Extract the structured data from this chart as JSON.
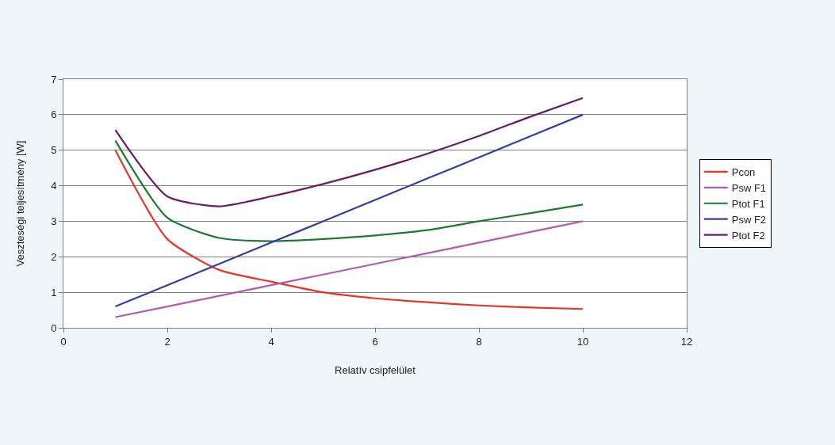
{
  "chart_data": {
    "type": "line",
    "xlabel": "Relatív csipfelület",
    "ylabel": "Veszteségi teljesítmény [W]",
    "x": [
      1,
      2,
      3,
      4,
      5,
      6,
      7,
      8,
      9,
      10
    ],
    "series": [
      {
        "name": "Pcon",
        "color": "#e8342a",
        "values": [
          5.0,
          2.5,
          1.63,
          1.3,
          1.0,
          0.83,
          0.72,
          0.63,
          0.57,
          0.53
        ]
      },
      {
        "name": "Psw F1",
        "color": "#b05cb0",
        "values": [
          0.3,
          0.6,
          0.9,
          1.2,
          1.5,
          1.8,
          2.1,
          2.4,
          2.7,
          3.0
        ]
      },
      {
        "name": "Ptot F1",
        "color": "#1e7a32",
        "values": [
          5.27,
          3.1,
          2.53,
          2.44,
          2.5,
          2.6,
          2.75,
          3.0,
          3.23,
          3.47
        ]
      },
      {
        "name": "Psw F2",
        "color": "#3040a0",
        "values": [
          0.6,
          1.2,
          1.8,
          2.4,
          3.0,
          3.6,
          4.2,
          4.8,
          5.4,
          6.0
        ]
      },
      {
        "name": "Ptot F2",
        "color": "#6a1a6a",
        "values": [
          5.57,
          3.7,
          3.42,
          3.7,
          4.05,
          4.45,
          4.9,
          5.4,
          5.95,
          6.47
        ]
      }
    ],
    "xlim": [
      0,
      12
    ],
    "xticks": [
      0,
      2,
      4,
      6,
      8,
      10,
      12
    ],
    "ylim": [
      0,
      7
    ],
    "yticks": [
      0,
      1,
      2,
      3,
      4,
      5,
      6,
      7
    ],
    "grid": "y",
    "legend": "right",
    "marker": "none",
    "line_style": "solid"
  }
}
